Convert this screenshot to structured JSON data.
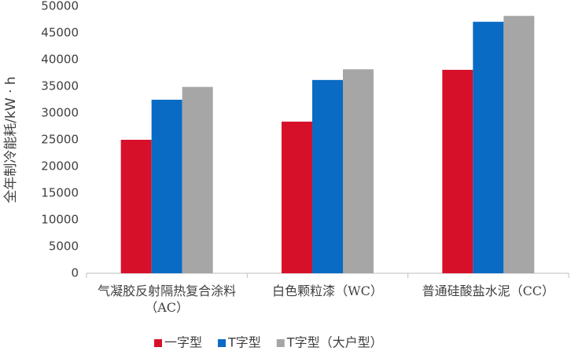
{
  "chart_data": {
    "type": "bar",
    "y_label": "全年制冷能耗/kW · h",
    "categories": [
      "气凝胶反射隔热复合涂料（AC）",
      "白色颗粒漆（WC）",
      "普通硅酸盐水泥（CC）"
    ],
    "series": [
      {
        "name": "一字型",
        "color": "#d7102a",
        "values": [
          25000,
          28400,
          38100
        ]
      },
      {
        "name": "T字型",
        "color": "#0a6bc4",
        "values": [
          32500,
          36200,
          47100
        ]
      },
      {
        "name": "T字型（大户型）",
        "color": "#a6a6a6",
        "values": [
          34900,
          38200,
          48200
        ]
      }
    ],
    "ylim": [
      0,
      50000
    ],
    "yticks": [
      0,
      5000,
      10000,
      15000,
      20000,
      25000,
      30000,
      35000,
      40000,
      45000,
      50000
    ],
    "grid": false,
    "legend": "bottom"
  }
}
